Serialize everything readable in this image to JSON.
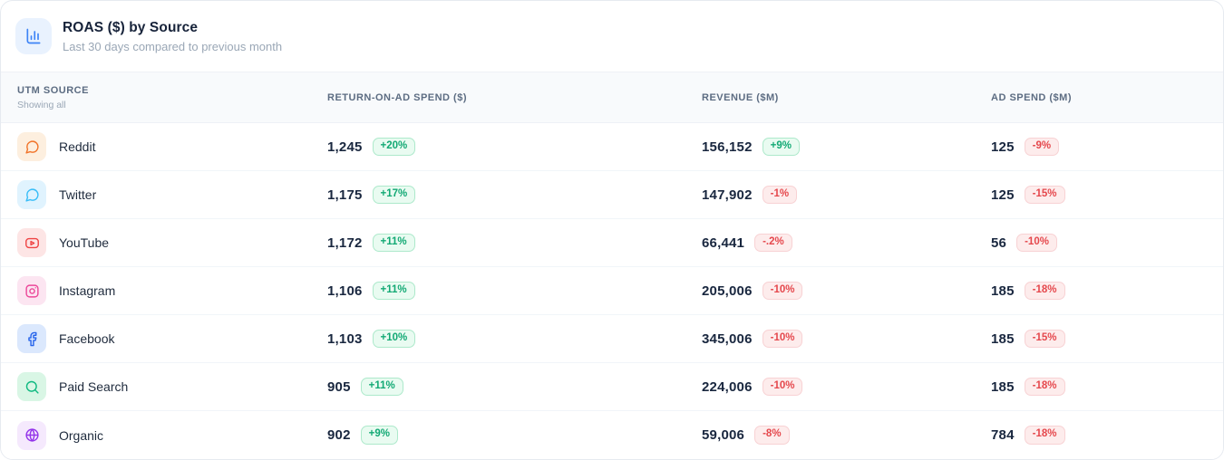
{
  "card": {
    "title": "ROAS ($) by Source",
    "subtitle": "Last 30 days compared to previous month",
    "header_icon": "bar-chart-icon"
  },
  "colors": {
    "accent_blue": "#3c83f6",
    "accent_tile_bg": "#e9f2fe",
    "up_text": "#12a974",
    "up_bg": "#e9fbf1",
    "up_border": "#ade9cb",
    "down_text": "#e5484d",
    "down_bg": "#fdecec",
    "down_border": "#f8d2d4"
  },
  "table": {
    "columns": [
      {
        "label": "UTM SOURCE",
        "sublabel": "Showing all"
      },
      {
        "label": "RETURN-ON-AD SPEND ($)"
      },
      {
        "label": "REVENUE ($M)"
      },
      {
        "label": "AD SPEND ($M)"
      }
    ],
    "rows": [
      {
        "source": "Reddit",
        "icon": "chat-bubble-icon",
        "icon_color": "#f1742a",
        "icon_bg": "#fdefdf",
        "roas": "1,245",
        "roas_delta": "+20%",
        "roas_trend": "up",
        "revenue": "156,152",
        "revenue_delta": "+9%",
        "revenue_trend": "up",
        "ad_spend": "125",
        "ad_spend_delta": "-9%",
        "ad_spend_trend": "down"
      },
      {
        "source": "Twitter",
        "icon": "chat-bubble-icon",
        "icon_color": "#38bdf8",
        "icon_bg": "#e0f3fe",
        "roas": "1,175",
        "roas_delta": "+17%",
        "roas_trend": "up",
        "revenue": "147,902",
        "revenue_delta": "-1%",
        "revenue_trend": "down",
        "ad_spend": "125",
        "ad_spend_delta": "-15%",
        "ad_spend_trend": "down"
      },
      {
        "source": "YouTube",
        "icon": "youtube-icon",
        "icon_color": "#ef4444",
        "icon_bg": "#fde5e5",
        "roas": "1,172",
        "roas_delta": "+11%",
        "roas_trend": "up",
        "revenue": "66,441",
        "revenue_delta": "-.2%",
        "revenue_trend": "down",
        "ad_spend": "56",
        "ad_spend_delta": "-10%",
        "ad_spend_trend": "down"
      },
      {
        "source": "Instagram",
        "icon": "instagram-icon",
        "icon_color": "#ec4899",
        "icon_bg": "#fce5f1",
        "roas": "1,106",
        "roas_delta": "+11%",
        "roas_trend": "up",
        "revenue": "205,006",
        "revenue_delta": "-10%",
        "revenue_trend": "down",
        "ad_spend": "185",
        "ad_spend_delta": "-18%",
        "ad_spend_trend": "down"
      },
      {
        "source": "Facebook",
        "icon": "facebook-icon",
        "icon_color": "#2563eb",
        "icon_bg": "#dbe8fd",
        "roas": "1,103",
        "roas_delta": "+10%",
        "roas_trend": "up",
        "revenue": "345,006",
        "revenue_delta": "-10%",
        "revenue_trend": "down",
        "ad_spend": "185",
        "ad_spend_delta": "-15%",
        "ad_spend_trend": "down"
      },
      {
        "source": "Paid Search",
        "icon": "search-icon",
        "icon_color": "#10b981",
        "icon_bg": "#d9f6e5",
        "roas": "905",
        "roas_delta": "+11%",
        "roas_trend": "up",
        "revenue": "224,006",
        "revenue_delta": "-10%",
        "revenue_trend": "down",
        "ad_spend": "185",
        "ad_spend_delta": "-18%",
        "ad_spend_trend": "down"
      },
      {
        "source": "Organic",
        "icon": "globe-icon",
        "icon_color": "#9333ea",
        "icon_bg": "#f5e9fd",
        "roas": "902",
        "roas_delta": "+9%",
        "roas_trend": "up",
        "revenue": "59,006",
        "revenue_delta": "-8%",
        "revenue_trend": "down",
        "ad_spend": "784",
        "ad_spend_delta": "-18%",
        "ad_spend_trend": "down"
      }
    ]
  }
}
